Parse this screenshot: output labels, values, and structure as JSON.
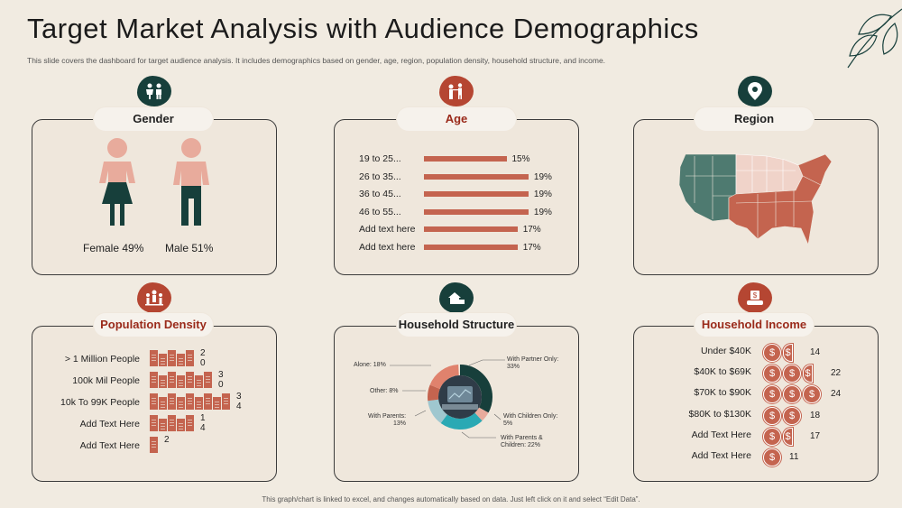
{
  "title": "Target Market Analysis with Audience Demographics",
  "subtitle": "This slide covers the dashboard for target audience analysis. It includes demographics based on gender, age, region, population density, household structure, and income.",
  "footer": "This graph/chart is linked to excel, and changes automatically based on data. Just left click on it and select “Edit Data”.",
  "colors": {
    "accent": "#c4644f",
    "dark": "#173f3b",
    "light": "#e8ab9c"
  },
  "gender": {
    "title": "Gender",
    "female": "Female 49%",
    "male": "Male 51%"
  },
  "age": {
    "title": "Age",
    "rows": [
      {
        "label": "19 to 25...",
        "pct": "15%",
        "value": 15
      },
      {
        "label": "26 to 35...",
        "pct": "19%",
        "value": 19
      },
      {
        "label": "36 to 45...",
        "pct": "19%",
        "value": 19
      },
      {
        "label": "46 to 55...",
        "pct": "19%",
        "value": 19
      },
      {
        "label": "Add text here",
        "pct": "17%",
        "value": 17
      },
      {
        "label": "Add text here",
        "pct": "17%",
        "value": 17
      }
    ]
  },
  "region": {
    "title": "Region"
  },
  "population": {
    "title": "Population Density",
    "rows": [
      {
        "label": "> 1 Million People",
        "n1": "2",
        "n2": "0",
        "count": 5
      },
      {
        "label": "100k Mil People",
        "n1": "3",
        "n2": "0",
        "count": 7
      },
      {
        "label": "10k To 99K People",
        "n1": "3",
        "n2": "4",
        "count": 9
      },
      {
        "label": "Add Text Here",
        "n1": "1",
        "n2": "4",
        "count": 5
      },
      {
        "label": "Add Text Here",
        "n1": "2",
        "n2": "",
        "count": 1
      }
    ]
  },
  "household": {
    "title": "Household Structure",
    "labels": {
      "alone": "Alone: 18%",
      "other": "Other: 8%",
      "parents": "With Parents:\n13%",
      "partner": "With Partner Only:\n33%",
      "children": "With Children Only:\n5%",
      "parents_children": "With Parents &\nChildren: 22%"
    }
  },
  "income": {
    "title": "Household Income",
    "rows": [
      {
        "label": "Under $40K",
        "value": "14",
        "coins": 1.5
      },
      {
        "label": "$40K to $69K",
        "value": "22",
        "coins": 2.5
      },
      {
        "label": "$70K to $90K",
        "value": "24",
        "coins": 3
      },
      {
        "label": "$80K to $130K",
        "value": "18",
        "coins": 2
      },
      {
        "label": "Add Text Here",
        "value": "17",
        "coins": 1.5
      },
      {
        "label": "Add Text Here",
        "value": "11",
        "coins": 1
      }
    ]
  }
}
